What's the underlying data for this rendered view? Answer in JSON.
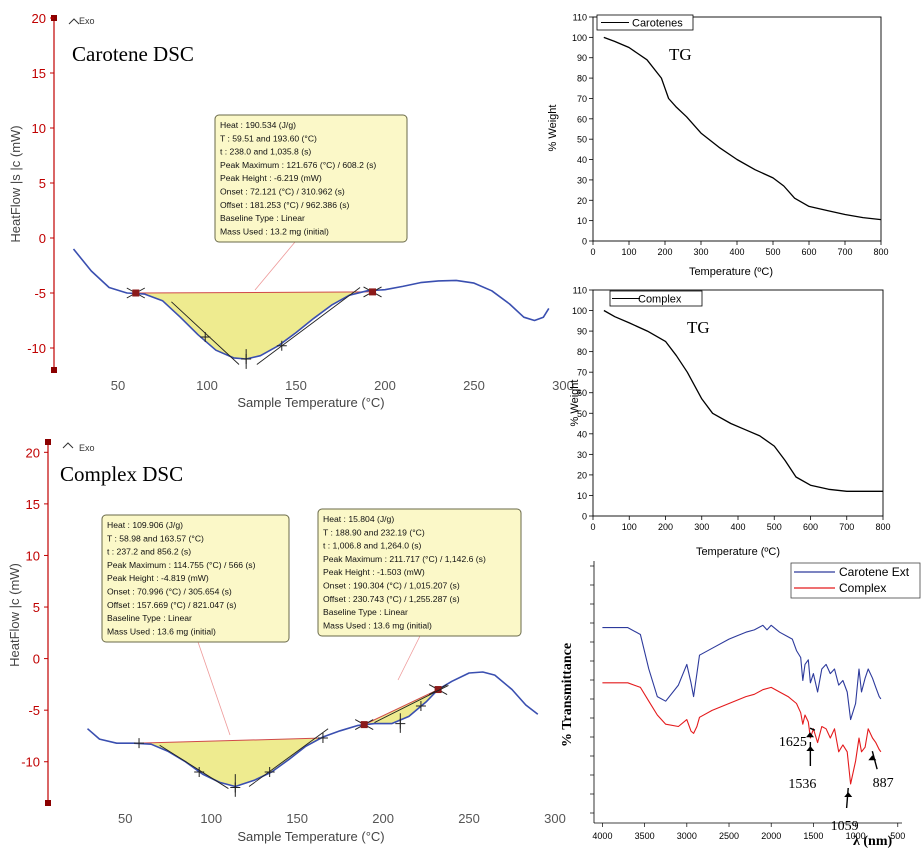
{
  "chart_data": [
    {
      "id": "dsc1",
      "type": "line",
      "title": "Carotene DSC",
      "xlabel": "Sample Temperature (°C)",
      "ylabel": "HeatFlow |s |c (mW)",
      "exo_label": "Exo",
      "xlim": [
        15,
        300
      ],
      "ylim": [
        -12,
        20
      ],
      "x_ticks": [
        50,
        100,
        150,
        200,
        250,
        300
      ],
      "y_ticks": [
        20,
        15,
        10,
        5,
        0,
        -5,
        -10
      ],
      "series": [
        {
          "color": "#3a4fb0",
          "points": [
            [
              25,
              -1
            ],
            [
              35,
              -3
            ],
            [
              45,
              -4.5
            ],
            [
              55,
              -5
            ],
            [
              65,
              -5.1
            ],
            [
              75,
              -5.7
            ],
            [
              85,
              -7.2
            ],
            [
              95,
              -8.8
            ],
            [
              105,
              -10.2
            ],
            [
              115,
              -10.9
            ],
            [
              122,
              -11
            ],
            [
              130,
              -10.7
            ],
            [
              140,
              -9.8
            ],
            [
              150,
              -8.6
            ],
            [
              160,
              -7.3
            ],
            [
              170,
              -6.1
            ],
            [
              180,
              -5.2
            ],
            [
              190,
              -4.8
            ],
            [
              200,
              -4.7
            ],
            [
              210,
              -4.4
            ],
            [
              220,
              -4.05
            ],
            [
              230,
              -3.9
            ],
            [
              240,
              -3.85
            ],
            [
              250,
              -4.1
            ],
            [
              260,
              -4.8
            ],
            [
              270,
              -6
            ],
            [
              278,
              -7.2
            ],
            [
              284,
              -7.5
            ],
            [
              289,
              -7.2
            ],
            [
              292,
              -6.4
            ]
          ]
        }
      ],
      "peak_region": {
        "x_start": 60,
        "x_end": 193,
        "baseline_start": -5,
        "baseline_end": -4.9
      },
      "markers": [
        [
          60,
          -5
        ],
        [
          193,
          -4.9
        ]
      ],
      "crosses": [
        [
          99,
          -9
        ],
        [
          142,
          -9.8
        ],
        [
          122,
          -11
        ]
      ],
      "annotation": {
        "lines": [
          "Heat : 190.534 (J/g)",
          "T : 59.51 and 193.60 (°C)",
          "t : 238.0 and 1,035.8 (s)",
          "Peak Maximum : 121.676 (°C) / 608.2 (s)",
          "Peak Height : -6.219 (mW)",
          "Onset : 72.121 (°C) / 310.962 (s)",
          "Offset : 181.253 (°C) / 962.386 (s)",
          "Baseline Type : Linear",
          "Mass Used : 13.2 mg (initial)"
        ]
      }
    },
    {
      "id": "dsc2",
      "type": "line",
      "title": "Complex DSC",
      "xlabel": "Sample Temperature (°C)",
      "ylabel": "HeatFlow |c (mW)",
      "exo_label": "Exo",
      "xlim": [
        15,
        305
      ],
      "ylim": [
        -14,
        21
      ],
      "x_ticks": [
        50,
        100,
        150,
        200,
        250,
        300
      ],
      "y_ticks": [
        20,
        15,
        10,
        5,
        0,
        -5,
        -10
      ],
      "series": [
        {
          "color": "#3a4fb0",
          "points": [
            [
              28,
              -6.8
            ],
            [
              35,
              -7.8
            ],
            [
              45,
              -8.2
            ],
            [
              55,
              -8.2
            ],
            [
              65,
              -8.3
            ],
            [
              75,
              -9
            ],
            [
              85,
              -10
            ],
            [
              95,
              -11.2
            ],
            [
              105,
              -12
            ],
            [
              114,
              -12.4
            ],
            [
              125,
              -11.8
            ],
            [
              135,
              -11
            ],
            [
              145,
              -9.8
            ],
            [
              155,
              -8.5
            ],
            [
              165,
              -7.6
            ],
            [
              175,
              -7
            ],
            [
              185,
              -6.5
            ],
            [
              195,
              -6.3
            ],
            [
              205,
              -6.3
            ],
            [
              215,
              -5.6
            ],
            [
              225,
              -4.2
            ],
            [
              232,
              -3
            ],
            [
              240,
              -2.2
            ],
            [
              250,
              -1.4
            ],
            [
              258,
              -1.3
            ],
            [
              265,
              -1.6
            ],
            [
              275,
              -3
            ],
            [
              283,
              -4.5
            ],
            [
              290,
              -5.4
            ]
          ]
        }
      ],
      "peak_regions": [
        {
          "x_start": 58,
          "x_end": 165,
          "baseline_start": -8.2,
          "baseline_end": -7.7
        },
        {
          "x_start": 189,
          "x_end": 232,
          "baseline_start": -6.4,
          "baseline_end": -3
        }
      ],
      "markers": [
        [
          189,
          -6.4
        ],
        [
          232,
          -3
        ]
      ],
      "crosses": [
        [
          58,
          -8.2
        ],
        [
          93,
          -11
        ],
        [
          134,
          -11
        ],
        [
          165,
          -7.7
        ],
        [
          222,
          -4.6
        ],
        [
          114,
          -12.5
        ],
        [
          210,
          -6.3
        ]
      ],
      "annotations": [
        {
          "lines": [
            "Heat : 109.906 (J/g)",
            "T : 58.98 and 163.57 (°C)",
            "t : 237.2 and 856.2 (s)",
            "Peak Maximum : 114.755 (°C) / 566 (s)",
            "Peak Height : -4.819 (mW)",
            "Onset : 70.996 (°C) / 305.654 (s)",
            "Offset : 157.669 (°C) / 821.047 (s)",
            "Baseline Type : Linear",
            "Mass Used : 13.6 mg (initial)"
          ]
        },
        {
          "lines": [
            "Heat : 15.804 (J/g)",
            "T : 188.90 and 232.19 (°C)",
            "t : 1,006.8 and 1,264.0 (s)",
            "Peak Maximum : 211.717 (°C) / 1,142.6 (s)",
            "Peak Height : -1.503 (mW)",
            "Onset : 190.304 (°C) / 1,015.207 (s)",
            "Offset : 230.743 (°C) / 1,255.287 (s)",
            "Baseline Type : Linear",
            "Mass Used : 13.6 mg (initial)"
          ]
        }
      ]
    },
    {
      "id": "tg1",
      "type": "line",
      "title": "TG",
      "xlabel": "Temperature (ºC)",
      "ylabel": "% Weight",
      "legend": [
        "Carotenes"
      ],
      "legend_position": "top-left",
      "xlim": [
        0,
        800
      ],
      "ylim": [
        0,
        110
      ],
      "x_ticks": [
        0,
        100,
        200,
        300,
        400,
        500,
        600,
        700,
        800
      ],
      "y_ticks": [
        0,
        10,
        20,
        30,
        40,
        50,
        60,
        70,
        80,
        90,
        100,
        110
      ],
      "series": [
        {
          "name": "Carotenes",
          "color": "#000000",
          "points": [
            [
              30,
              100
            ],
            [
              60,
              98
            ],
            [
              100,
              95
            ],
            [
              150,
              89
            ],
            [
              190,
              80
            ],
            [
              200,
              75
            ],
            [
              210,
              70
            ],
            [
              230,
              66
            ],
            [
              260,
              61
            ],
            [
              300,
              53
            ],
            [
              350,
              46
            ],
            [
              400,
              40
            ],
            [
              450,
              35
            ],
            [
              500,
              31
            ],
            [
              530,
              27
            ],
            [
              560,
              21
            ],
            [
              600,
              17
            ],
            [
              650,
              15
            ],
            [
              700,
              13
            ],
            [
              750,
              11.5
            ],
            [
              800,
              10.5
            ]
          ]
        }
      ]
    },
    {
      "id": "tg2",
      "type": "line",
      "title": "TG",
      "xlabel": "Temperature (ºC)",
      "ylabel": "% Weight",
      "legend": [
        "Complex"
      ],
      "legend_position": "top-left",
      "xlim": [
        0,
        800
      ],
      "ylim": [
        0,
        110
      ],
      "x_ticks": [
        0,
        100,
        200,
        300,
        400,
        500,
        600,
        700,
        800
      ],
      "y_ticks": [
        0,
        10,
        20,
        30,
        40,
        50,
        60,
        70,
        80,
        90,
        100,
        110
      ],
      "series": [
        {
          "name": "Complex",
          "color": "#000000",
          "points": [
            [
              30,
              100
            ],
            [
              60,
              97
            ],
            [
              100,
              94
            ],
            [
              150,
              90
            ],
            [
              200,
              85
            ],
            [
              230,
              78
            ],
            [
              260,
              70
            ],
            [
              300,
              57
            ],
            [
              330,
              50
            ],
            [
              380,
              45
            ],
            [
              420,
              42
            ],
            [
              460,
              39
            ],
            [
              500,
              34
            ],
            [
              530,
              27
            ],
            [
              560,
              19
            ],
            [
              600,
              15
            ],
            [
              650,
              13
            ],
            [
              700,
              12
            ],
            [
              750,
              12
            ],
            [
              800,
              12
            ]
          ]
        }
      ]
    },
    {
      "id": "ftir",
      "type": "line",
      "xlabel": "λ (nm)",
      "ylabel": "% Transmittance",
      "legend": [
        "Carotene Ext",
        "Complex"
      ],
      "legend_position": "top-right",
      "xlim": [
        4100,
        450
      ],
      "ylim": [
        0,
        100
      ],
      "x_ticks": [
        4000,
        3500,
        3000,
        2500,
        2000,
        1500,
        1000,
        500
      ],
      "series": [
        {
          "name": "Carotene Ext",
          "color": "#2d3a9c",
          "points": [
            [
              4000,
              88
            ],
            [
              3700,
              88
            ],
            [
              3550,
              85
            ],
            [
              3450,
              70
            ],
            [
              3350,
              58
            ],
            [
              3250,
              56
            ],
            [
              3100,
              63
            ],
            [
              3000,
              72
            ],
            [
              2950,
              64
            ],
            [
              2920,
              58
            ],
            [
              2880,
              68
            ],
            [
              2850,
              76
            ],
            [
              2700,
              79
            ],
            [
              2500,
              83
            ],
            [
              2300,
              86
            ],
            [
              2200,
              87
            ],
            [
              2100,
              89
            ],
            [
              2050,
              87
            ],
            [
              2000,
              89
            ],
            [
              1900,
              86
            ],
            [
              1750,
              83
            ],
            [
              1700,
              78
            ],
            [
              1650,
              75
            ],
            [
              1625,
              65
            ],
            [
              1600,
              72
            ],
            [
              1560,
              74
            ],
            [
              1536,
              64
            ],
            [
              1500,
              68
            ],
            [
              1450,
              60
            ],
            [
              1400,
              70
            ],
            [
              1350,
              72
            ],
            [
              1300,
              68
            ],
            [
              1250,
              70
            ],
            [
              1200,
              63
            ],
            [
              1150,
              65
            ],
            [
              1100,
              60
            ],
            [
              1059,
              48
            ],
            [
              1000,
              55
            ],
            [
              960,
              70
            ],
            [
              930,
              60
            ],
            [
              887,
              66
            ],
            [
              850,
              70
            ],
            [
              800,
              66
            ],
            [
              760,
              62
            ],
            [
              720,
              58
            ],
            [
              700,
              57
            ]
          ]
        },
        {
          "name": "Complex",
          "color": "#e41a1c",
          "points": [
            [
              4000,
              64
            ],
            [
              3700,
              64
            ],
            [
              3550,
              62
            ],
            [
              3450,
              56
            ],
            [
              3350,
              50
            ],
            [
              3250,
              46
            ],
            [
              3100,
              45
            ],
            [
              3000,
              48
            ],
            [
              2950,
              43
            ],
            [
              2920,
              42
            ],
            [
              2880,
              45
            ],
            [
              2850,
              49
            ],
            [
              2700,
              52
            ],
            [
              2500,
              55
            ],
            [
              2300,
              58
            ],
            [
              2200,
              59
            ],
            [
              2100,
              61
            ],
            [
              2000,
              62
            ],
            [
              1900,
              60
            ],
            [
              1800,
              58
            ],
            [
              1700,
              55
            ],
            [
              1650,
              51
            ],
            [
              1625,
              46
            ],
            [
              1600,
              50
            ],
            [
              1560,
              47
            ],
            [
              1536,
              40
            ],
            [
              1500,
              44
            ],
            [
              1450,
              38
            ],
            [
              1400,
              45
            ],
            [
              1350,
              44
            ],
            [
              1300,
              40
            ],
            [
              1250,
              44
            ],
            [
              1200,
              34
            ],
            [
              1150,
              37
            ],
            [
              1100,
              34
            ],
            [
              1059,
              20
            ],
            [
              1000,
              30
            ],
            [
              960,
              40
            ],
            [
              930,
              34
            ],
            [
              887,
              36
            ],
            [
              850,
              44
            ],
            [
              800,
              40
            ],
            [
              760,
              38
            ],
            [
              720,
              35
            ],
            [
              700,
              34
            ]
          ]
        }
      ],
      "annotations": [
        {
          "label": "1625",
          "x": 1625
        },
        {
          "label": "1536",
          "x": 1536
        },
        {
          "label": "1059",
          "x": 1059
        },
        {
          "label": "887",
          "x": 887
        }
      ]
    }
  ]
}
